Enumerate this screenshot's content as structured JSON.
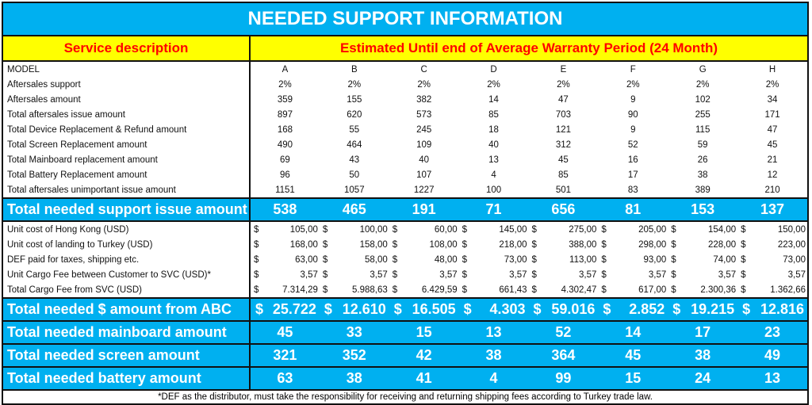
{
  "title": "NEEDED SUPPORT INFORMATION",
  "header": {
    "service_description": "Service description",
    "period": "Estimated Until end of Average Warranty Period (24 Month)"
  },
  "colors": {
    "accent_blue": "#00b0f0",
    "header_yellow": "#ffff00",
    "header_red": "#ff0000"
  },
  "currency_symbol": "$",
  "models_label": "MODEL",
  "models": [
    "A",
    "B",
    "C",
    "D",
    "E",
    "F",
    "G",
    "H"
  ],
  "count_rows": [
    {
      "label": "Aftersales support",
      "values": [
        "2%",
        "2%",
        "2%",
        "2%",
        "2%",
        "2%",
        "2%",
        "2%"
      ]
    },
    {
      "label": "Aftersales amount",
      "values": [
        "359",
        "155",
        "382",
        "14",
        "47",
        "9",
        "102",
        "34"
      ]
    },
    {
      "label": "Total aftersales issue amount",
      "values": [
        "897",
        "620",
        "573",
        "85",
        "703",
        "90",
        "255",
        "171"
      ]
    },
    {
      "label": "Total Device Replacement & Refund amount",
      "values": [
        "168",
        "55",
        "245",
        "18",
        "121",
        "9",
        "115",
        "47"
      ]
    },
    {
      "label": "Total Screen Replacement amount",
      "values": [
        "490",
        "464",
        "109",
        "40",
        "312",
        "52",
        "59",
        "45"
      ]
    },
    {
      "label": "Total Mainboard replacement amount",
      "values": [
        "69",
        "43",
        "40",
        "13",
        "45",
        "16",
        "26",
        "21"
      ]
    },
    {
      "label": "Total Battery Replacement amount",
      "values": [
        "96",
        "50",
        "107",
        "4",
        "85",
        "17",
        "38",
        "12"
      ]
    },
    {
      "label": "Total aftersales unimportant issue amount",
      "values": [
        "1151",
        "1057",
        "1227",
        "100",
        "501",
        "83",
        "389",
        "210"
      ]
    }
  ],
  "support_total": {
    "label": "Total needed support issue amount",
    "values": [
      "538",
      "465",
      "191",
      "71",
      "656",
      "81",
      "153",
      "137"
    ]
  },
  "money_rows": [
    {
      "label": "Unit cost of Hong Kong (USD)",
      "values": [
        "105,00",
        "100,00",
        "60,00",
        "145,00",
        "275,00",
        "205,00",
        "154,00",
        "150,00"
      ]
    },
    {
      "label": "Unit cost of landing to Turkey (USD)",
      "values": [
        "168,00",
        "158,00",
        "108,00",
        "218,00",
        "388,00",
        "298,00",
        "228,00",
        "223,00"
      ]
    },
    {
      "label": "DEF paid for taxes, shipping etc.",
      "values": [
        "63,00",
        "58,00",
        "48,00",
        "73,00",
        "113,00",
        "93,00",
        "74,00",
        "73,00"
      ]
    },
    {
      "label": "Unit Cargo Fee between Customer to SVC (USD)*",
      "values": [
        "3,57",
        "3,57",
        "3,57",
        "3,57",
        "3,57",
        "3,57",
        "3,57",
        "3,57"
      ]
    },
    {
      "label": "Total Cargo Fee from SVC (USD)",
      "values": [
        "7.314,29",
        "5.988,63",
        "6.429,59",
        "661,43",
        "4.302,47",
        "617,00",
        "2.300,36",
        "1.362,66"
      ]
    }
  ],
  "money_total": {
    "label": "Total needed $ amount from ABC",
    "values": [
      "25.722",
      "12.610",
      "16.505",
      "4.303",
      "59.016",
      "2.852",
      "19.215",
      "12.816"
    ]
  },
  "summary_rows": [
    {
      "label": "Total needed mainboard amount",
      "values": [
        "45",
        "33",
        "15",
        "13",
        "52",
        "14",
        "17",
        "23"
      ]
    },
    {
      "label": "Total needed screen amount",
      "values": [
        "321",
        "352",
        "42",
        "38",
        "364",
        "45",
        "38",
        "49"
      ]
    },
    {
      "label": "Total needed battery amount",
      "values": [
        "63",
        "38",
        "41",
        "4",
        "99",
        "15",
        "24",
        "13"
      ]
    }
  ],
  "footnote": "*DEF as the distributor, must take the responsibility for receiving and returning shipping fees according to Turkey trade law."
}
